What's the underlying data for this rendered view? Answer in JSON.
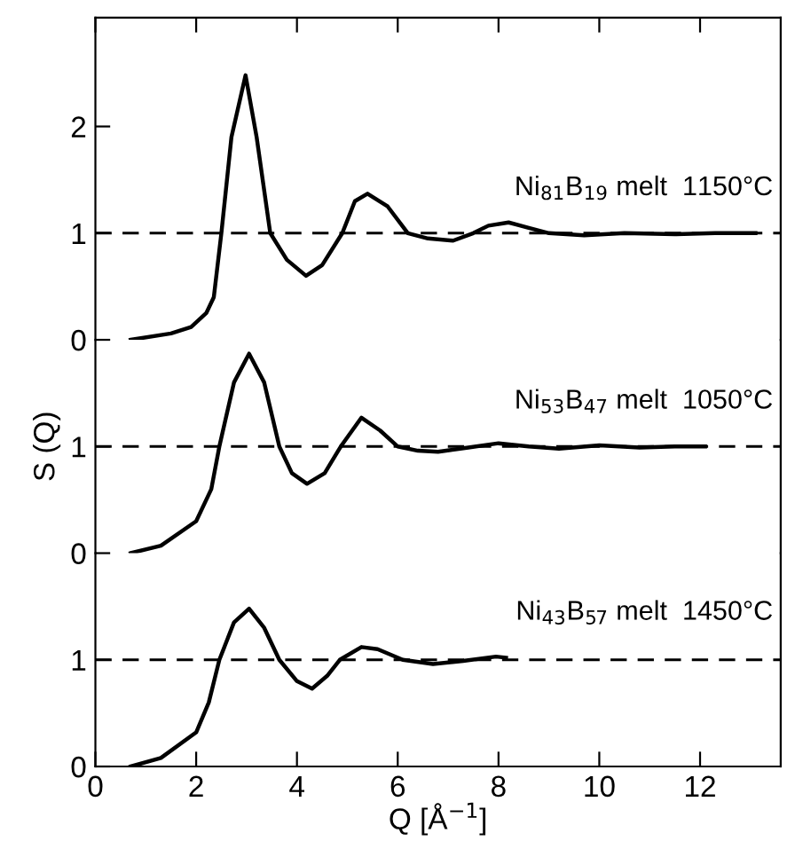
{
  "chart_data": [
    {
      "type": "line",
      "xlim": [
        0,
        13.6
      ],
      "ylim": [
        0,
        3.02
      ],
      "xticks": [
        0,
        2,
        4,
        6,
        8,
        10,
        12
      ],
      "yticks": [
        0,
        1,
        2
      ],
      "tick_labels": "y",
      "grid": false,
      "legend": false,
      "marker": "none",
      "line_style": "solid",
      "ref_lines": [
        {
          "axis": "y",
          "value": 1,
          "line_style": "dashed",
          "color": "#000000"
        }
      ],
      "series": [
        {
          "name": "Ni$_{81}$B$_{19}$ melt  1150°C",
          "color": "#000000",
          "x": [
            0.7,
            1.5,
            1.9,
            2.2,
            2.35,
            2.5,
            2.7,
            2.98,
            3.2,
            3.47,
            3.8,
            4.18,
            4.5,
            4.9,
            5.15,
            5.4,
            5.8,
            6.2,
            6.6,
            7.1,
            7.5,
            7.8,
            8.2,
            8.6,
            9.0,
            9.7,
            10.5,
            11.5,
            12.3,
            13.1
          ],
          "values": [
            0.0,
            0.06,
            0.12,
            0.25,
            0.4,
            1.0,
            1.9,
            2.48,
            1.9,
            1.0,
            0.75,
            0.6,
            0.7,
            1.0,
            1.3,
            1.37,
            1.25,
            1.0,
            0.95,
            0.93,
            1.0,
            1.07,
            1.1,
            1.05,
            1.0,
            0.98,
            1.0,
            0.99,
            1.0,
            1.0
          ]
        }
      ]
    },
    {
      "type": "line",
      "xlim": [
        0,
        13.6
      ],
      "ylim": [
        0,
        2
      ],
      "xticks": [
        0,
        2,
        4,
        6,
        8,
        10,
        12
      ],
      "yticks": [
        0,
        1
      ],
      "tick_labels": "y",
      "ylabel": "S (Q)",
      "grid": false,
      "legend": false,
      "marker": "none",
      "line_style": "solid",
      "ref_lines": [
        {
          "axis": "y",
          "value": 1,
          "line_style": "dashed",
          "color": "#000000"
        }
      ],
      "series": [
        {
          "name": "Ni$_{53}$B$_{47}$ melt  1050°C",
          "color": "#000000",
          "x": [
            0.7,
            1.3,
            2.0,
            2.3,
            2.46,
            2.75,
            3.05,
            3.35,
            3.65,
            3.9,
            4.2,
            4.55,
            4.87,
            5.28,
            5.65,
            6.0,
            6.4,
            6.8,
            7.4,
            8.0,
            8.6,
            9.2,
            10.0,
            10.8,
            11.5,
            12.1
          ],
          "values": [
            0.0,
            0.07,
            0.3,
            0.6,
            1.0,
            1.6,
            1.87,
            1.6,
            1.0,
            0.75,
            0.65,
            0.75,
            1.0,
            1.27,
            1.15,
            1.0,
            0.96,
            0.95,
            0.99,
            1.03,
            1.0,
            0.98,
            1.01,
            0.99,
            1.0,
            1.0
          ]
        }
      ]
    },
    {
      "type": "line",
      "xlim": [
        0,
        13.6
      ],
      "ylim": [
        0,
        2
      ],
      "xticks": [
        0,
        2,
        4,
        6,
        8,
        10,
        12
      ],
      "yticks": [
        0,
        1
      ],
      "xlabel": "Q [Å$^{−1}$]",
      "grid": false,
      "legend": false,
      "marker": "none",
      "line_style": "solid",
      "ref_lines": [
        {
          "axis": "y",
          "value": 1,
          "line_style": "dashed",
          "color": "#000000"
        }
      ],
      "series": [
        {
          "name": "Ni$_{43}$B$_{57}$ melt  1450°C",
          "color": "#000000",
          "x": [
            0.7,
            1.3,
            2.0,
            2.25,
            2.46,
            2.75,
            3.05,
            3.35,
            3.65,
            4.0,
            4.3,
            4.6,
            4.85,
            5.28,
            5.6,
            6.1,
            6.7,
            7.3,
            7.95,
            8.15
          ],
          "values": [
            0.0,
            0.08,
            0.32,
            0.6,
            1.0,
            1.35,
            1.48,
            1.3,
            1.0,
            0.8,
            0.73,
            0.85,
            1.0,
            1.12,
            1.1,
            1.0,
            0.96,
            0.99,
            1.03,
            1.02
          ]
        }
      ]
    }
  ]
}
